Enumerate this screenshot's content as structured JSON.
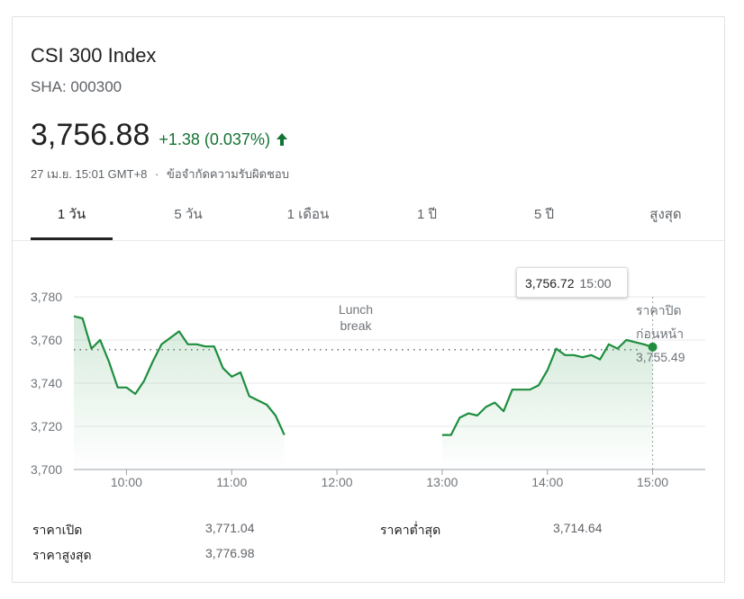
{
  "header": {
    "title": "CSI 300 Index",
    "ticker": "SHA: 000300",
    "price": "3,756.88",
    "change": "+1.38 (0.037%)",
    "timestamp": "27 เม.ย. 15:01 GMT+8",
    "separator": "·",
    "disclaimer": "ข้อจำกัดความรับผิดชอบ"
  },
  "tabs": [
    {
      "label": "1 วัน",
      "active": true
    },
    {
      "label": "5 วัน",
      "active": false
    },
    {
      "label": "1 เดือน",
      "active": false
    },
    {
      "label": "1 ปี",
      "active": false
    },
    {
      "label": "5 ปี",
      "active": false
    },
    {
      "label": "สูงสุด",
      "active": false
    }
  ],
  "tooltip": {
    "value": "3,756.72",
    "time": "15:00"
  },
  "prev_close": {
    "label_line1": "ราคาปิด",
    "label_line2": "ก่อนหน้า",
    "value": "3,755.49"
  },
  "colors": {
    "up": "#137333",
    "line": "#1e8e3e",
    "fill_top": "#d6f0dd",
    "grid": "#e8eaed"
  },
  "stats": {
    "open_label": "ราคาเปิด",
    "open_value": "3,771.04",
    "low_label": "ราคาต่ำสุด",
    "low_value": "3,714.64",
    "high_label": "ราคาสูงสุด",
    "high_value": "3,776.98"
  },
  "chart_data": {
    "type": "line",
    "title": "",
    "xlabel": "",
    "ylabel": "",
    "ylim": [
      3700,
      3780
    ],
    "y_ticks": [
      "3,700",
      "3,720",
      "3,740",
      "3,760",
      "3,780"
    ],
    "x_ticks": [
      "10:00",
      "11:00",
      "12:00",
      "13:00",
      "14:00",
      "15:00"
    ],
    "grid": true,
    "annotation": {
      "line1": "Lunch",
      "line2": "break"
    },
    "previous_close": 3755.49,
    "series": [
      {
        "segments": [
          [
            [
              "09:30",
              3771
            ],
            [
              "09:35",
              3770
            ],
            [
              "09:40",
              3756
            ],
            [
              "09:45",
              3760
            ],
            [
              "09:50",
              3750
            ],
            [
              "09:55",
              3738
            ],
            [
              "10:00",
              3738
            ],
            [
              "10:05",
              3735
            ],
            [
              "10:10",
              3741
            ],
            [
              "10:15",
              3750
            ],
            [
              "10:20",
              3758
            ],
            [
              "10:25",
              3761
            ],
            [
              "10:30",
              3764
            ],
            [
              "10:35",
              3758
            ],
            [
              "10:40",
              3758
            ],
            [
              "10:45",
              3757
            ],
            [
              "10:50",
              3757
            ],
            [
              "10:55",
              3747
            ],
            [
              "11:00",
              3743
            ],
            [
              "11:05",
              3745
            ],
            [
              "11:10",
              3734
            ],
            [
              "11:15",
              3732
            ],
            [
              "11:20",
              3730
            ],
            [
              "11:25",
              3725
            ],
            [
              "11:30",
              3716
            ]
          ],
          [
            [
              "13:00",
              3716
            ],
            [
              "13:05",
              3716
            ],
            [
              "13:10",
              3724
            ],
            [
              "13:15",
              3726
            ],
            [
              "13:20",
              3725
            ],
            [
              "13:25",
              3729
            ],
            [
              "13:30",
              3731
            ],
            [
              "13:35",
              3727
            ],
            [
              "13:40",
              3737
            ],
            [
              "13:45",
              3737
            ],
            [
              "13:50",
              3737
            ],
            [
              "13:55",
              3739
            ],
            [
              "14:00",
              3746
            ],
            [
              "14:05",
              3756
            ],
            [
              "14:10",
              3753
            ],
            [
              "14:15",
              3753
            ],
            [
              "14:20",
              3752
            ],
            [
              "14:25",
              3753
            ],
            [
              "14:30",
              3751
            ],
            [
              "14:35",
              3758
            ],
            [
              "14:40",
              3756
            ],
            [
              "14:45",
              3760
            ],
            [
              "14:50",
              3759
            ],
            [
              "14:55",
              3758
            ],
            [
              "15:00",
              3756.72
            ]
          ]
        ]
      }
    ]
  }
}
